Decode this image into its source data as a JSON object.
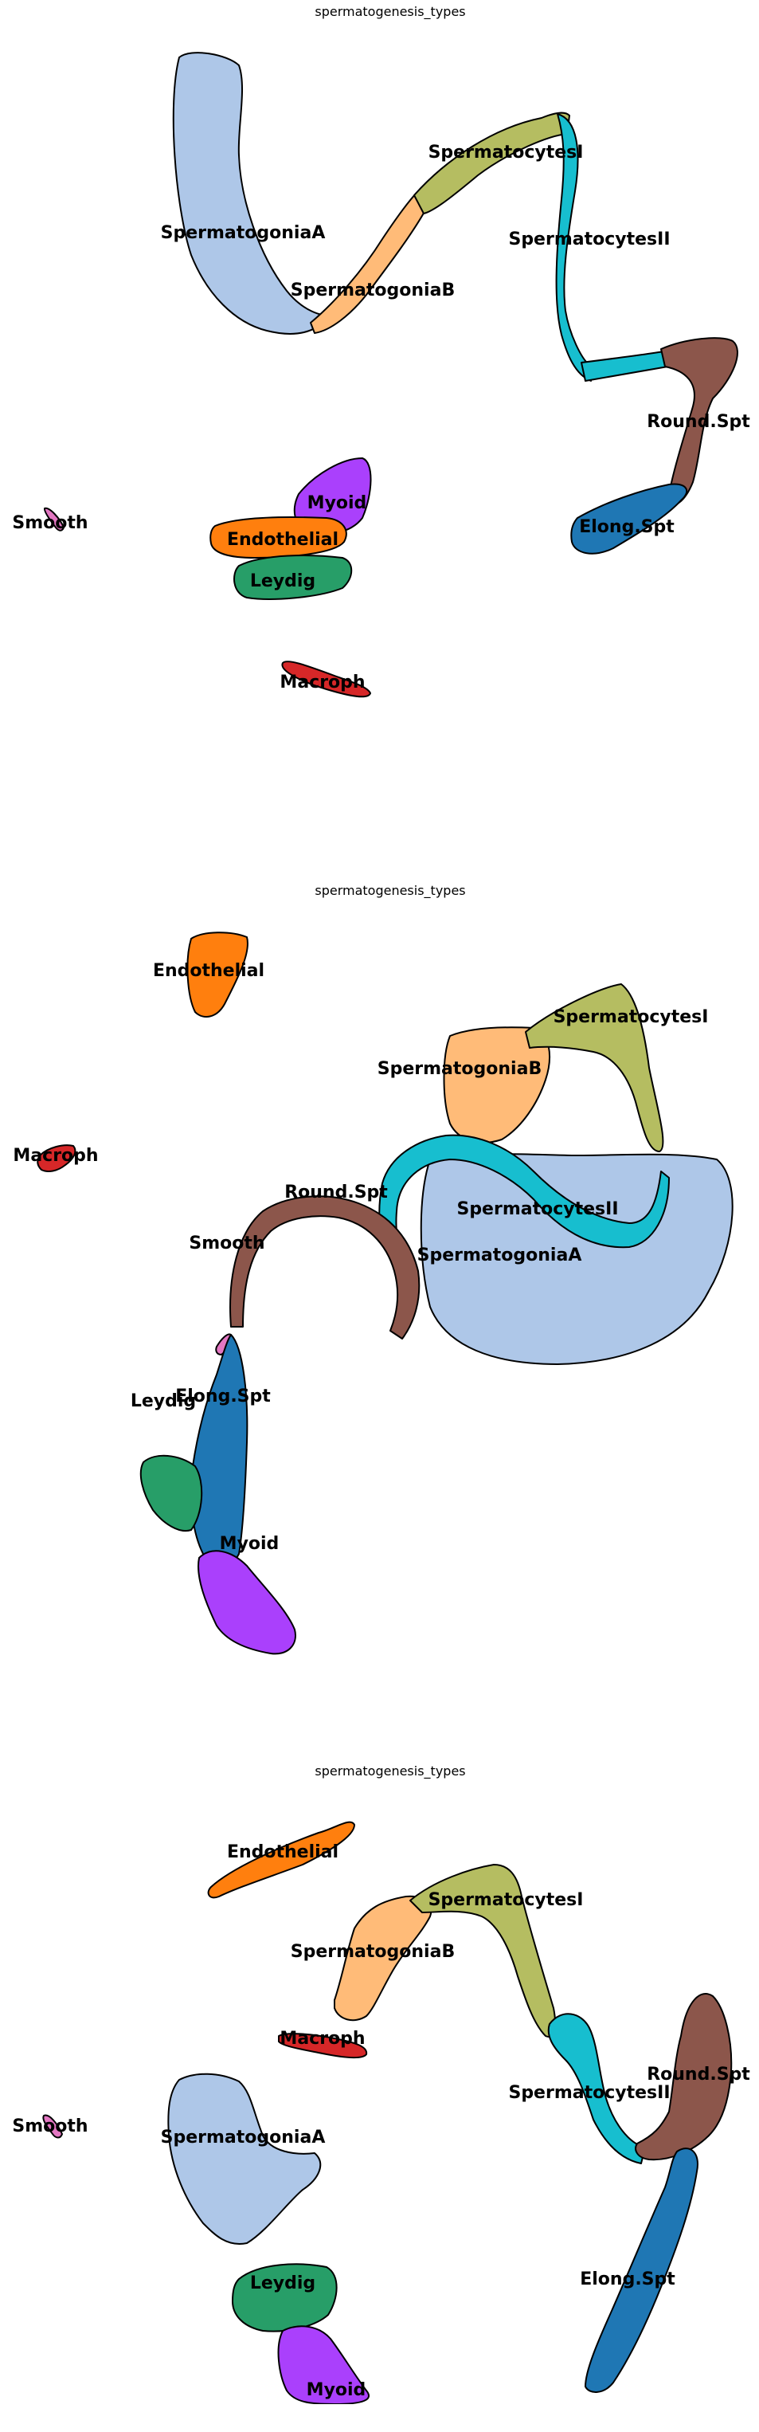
{
  "chart_data": [
    {
      "type": "scatter",
      "title": "spermatogenesis_types",
      "clusters": [
        {
          "name": "SpermatogoniaA",
          "color": "#aec7e8"
        },
        {
          "name": "SpermatogoniaB",
          "color": "#ffbb78"
        },
        {
          "name": "SpermatocytesI",
          "color": "#b5bd61"
        },
        {
          "name": "SpermatocytesII",
          "color": "#17becf"
        },
        {
          "name": "Round.Spt",
          "color": "#8c564b"
        },
        {
          "name": "Elong.Spt",
          "color": "#1f77b4"
        },
        {
          "name": "Myoid",
          "color": "#aa40fc"
        },
        {
          "name": "Endothelial",
          "color": "#ff7f0e"
        },
        {
          "name": "Leydig",
          "color": "#279e68"
        },
        {
          "name": "Smooth",
          "color": "#e377c2"
        },
        {
          "name": "Macroph",
          "color": "#d62728"
        }
      ]
    },
    {
      "type": "scatter",
      "title": "spermatogenesis_types",
      "clusters": [
        {
          "name": "Endothelial",
          "color": "#ff7f0e"
        },
        {
          "name": "SpermatocytesI",
          "color": "#b5bd61"
        },
        {
          "name": "SpermatogoniaB",
          "color": "#ffbb78"
        },
        {
          "name": "Macroph",
          "color": "#d62728"
        },
        {
          "name": "Round.Spt",
          "color": "#8c564b"
        },
        {
          "name": "SpermatocytesII",
          "color": "#17becf"
        },
        {
          "name": "SpermatogoniaA",
          "color": "#aec7e8"
        },
        {
          "name": "Smooth",
          "color": "#e377c2"
        },
        {
          "name": "Elong.Spt",
          "color": "#1f77b4"
        },
        {
          "name": "Leydig",
          "color": "#279e68"
        },
        {
          "name": "Myoid",
          "color": "#aa40fc"
        }
      ]
    },
    {
      "type": "scatter",
      "title": "spermatogenesis_types",
      "clusters": [
        {
          "name": "Endothelial",
          "color": "#ff7f0e"
        },
        {
          "name": "SpermatocytesI",
          "color": "#b5bd61"
        },
        {
          "name": "SpermatogoniaB",
          "color": "#ffbb78"
        },
        {
          "name": "Macroph",
          "color": "#d62728"
        },
        {
          "name": "SpermatocytesII",
          "color": "#17becf"
        },
        {
          "name": "Round.Spt",
          "color": "#8c564b"
        },
        {
          "name": "Smooth",
          "color": "#e377c2"
        },
        {
          "name": "SpermatogoniaA",
          "color": "#aec7e8"
        },
        {
          "name": "Leydig",
          "color": "#279e68"
        },
        {
          "name": "Elong.Spt",
          "color": "#1f77b4"
        },
        {
          "name": "Myoid",
          "color": "#aa40fc"
        }
      ]
    }
  ]
}
